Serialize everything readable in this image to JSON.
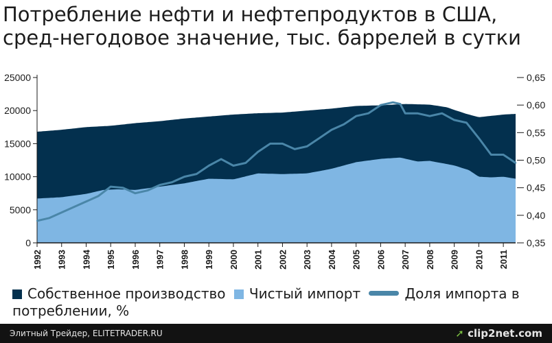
{
  "title": "Потребление нефти и нефтепродуктов в США, сред-негодовое значение, тыс. баррелей в сутки",
  "legend": {
    "own_production": "Собственное производство",
    "net_import": "Чистый импорт",
    "import_share": "Доля импорта в потреблении, %"
  },
  "footer": {
    "source": "Элитный Трейдер, ELITETRADER.RU",
    "logo": "clip2net.com"
  },
  "colors": {
    "own_production": "#03304e",
    "net_import": "#7fb6e3",
    "import_share": "#4a86a8",
    "footer_bg": "#121212"
  },
  "chart_data": {
    "type": "area",
    "x_ticks": [
      "1992",
      "1993",
      "1994",
      "1995",
      "1996",
      "1997",
      "1998",
      "1999",
      "2000",
      "2001",
      "2002",
      "2003",
      "2004",
      "2005",
      "2006",
      "2007",
      "2008",
      "2009",
      "2010",
      "2011"
    ],
    "y_left": {
      "ticks": [
        "0",
        "5000",
        "10000",
        "15000",
        "20000",
        "25000"
      ],
      "range": [
        0,
        25000
      ]
    },
    "y_right": {
      "ticks": [
        "0,35",
        "0,40",
        "0,45",
        "0,50",
        "0,55",
        "0,60",
        "0,65"
      ],
      "range": [
        0.35,
        0.65
      ]
    },
    "x_range": [
      1992.0,
      2011.5
    ],
    "series": [
      {
        "name": "Чистый импорт",
        "kind": "area",
        "axis": "left",
        "x": [
          1992.0,
          1993.0,
          1994.0,
          1994.7,
          1995.3,
          1996.0,
          1997.0,
          1998.0,
          1999.0,
          2000.0,
          2001.0,
          2002.0,
          2003.0,
          2004.0,
          2005.0,
          2006.0,
          2006.8,
          2007.5,
          2008.0,
          2009.0,
          2009.6,
          2010.0,
          2010.5,
          2011.0,
          2011.5
        ],
        "values": [
          6700,
          6900,
          7400,
          8000,
          8100,
          8000,
          8500,
          9000,
          9700,
          9600,
          10500,
          10400,
          10500,
          11200,
          12200,
          12700,
          12900,
          12300,
          12400,
          11700,
          11000,
          10000,
          9900,
          10000,
          9700
        ]
      },
      {
        "name": "Собственное производство",
        "kind": "stacked-area-top",
        "axis": "left",
        "x": [
          1992.0,
          1993.0,
          1994.0,
          1995.0,
          1996.0,
          1997.0,
          1998.0,
          1999.0,
          2000.0,
          2001.0,
          2002.0,
          2003.0,
          2004.0,
          2005.0,
          2006.0,
          2007.0,
          2008.0,
          2008.7,
          2009.0,
          2009.5,
          2010.0,
          2010.5,
          2011.0,
          2011.5
        ],
        "values": [
          16800,
          17100,
          17500,
          17700,
          18100,
          18400,
          18800,
          19100,
          19400,
          19600,
          19700,
          20000,
          20300,
          20700,
          20800,
          21000,
          20900,
          20500,
          20100,
          19500,
          19000,
          19200,
          19400,
          19500
        ]
      },
      {
        "name": "Доля импорта в потреблении, %",
        "kind": "line",
        "axis": "right",
        "x": [
          1992.0,
          1992.5,
          1993.0,
          1993.5,
          1994.0,
          1994.5,
          1995.0,
          1995.5,
          1996.0,
          1996.5,
          1997.0,
          1997.5,
          1998.0,
          1998.5,
          1999.0,
          1999.5,
          2000.0,
          2000.5,
          2001.0,
          2001.5,
          2002.0,
          2002.5,
          2003.0,
          2003.5,
          2004.0,
          2004.5,
          2005.0,
          2005.5,
          2006.0,
          2006.5,
          2006.8,
          2007.0,
          2007.5,
          2008.0,
          2008.5,
          2009.0,
          2009.5,
          2010.0,
          2010.5,
          2011.0,
          2011.5
        ],
        "values": [
          0.39,
          0.395,
          0.405,
          0.415,
          0.425,
          0.435,
          0.452,
          0.45,
          0.44,
          0.445,
          0.455,
          0.46,
          0.47,
          0.475,
          0.49,
          0.502,
          0.49,
          0.495,
          0.515,
          0.53,
          0.53,
          0.52,
          0.525,
          0.54,
          0.555,
          0.565,
          0.58,
          0.585,
          0.6,
          0.605,
          0.602,
          0.585,
          0.585,
          0.58,
          0.585,
          0.573,
          0.568,
          0.54,
          0.51,
          0.51,
          0.495
        ]
      }
    ]
  }
}
